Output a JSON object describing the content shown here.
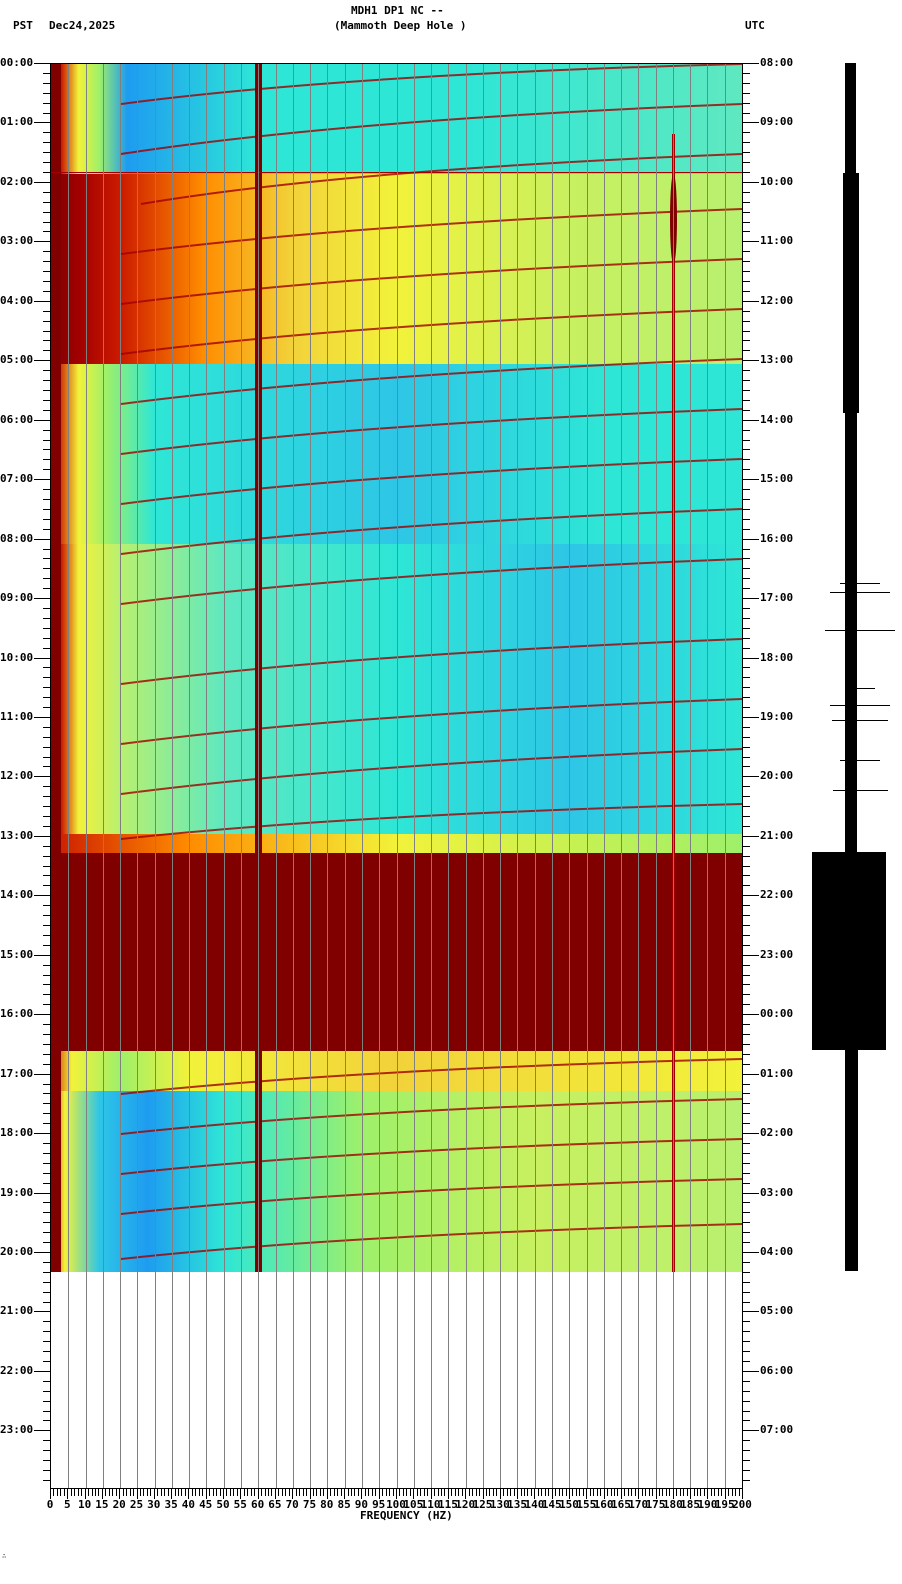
{
  "header": {
    "station": "MDH1 DP1 NC --",
    "location": "(Mammoth Deep Hole )",
    "left_tz": "PST",
    "date": "Dec24,2025",
    "right_tz": "UTC"
  },
  "colors": {
    "saturated": "#800000",
    "red": "#cc1a00",
    "orange": "#ff8c00",
    "yellow": "#f2f23a",
    "light_green": "#9ef06a",
    "cyan": "#2ee6d6",
    "blue": "#1e9cf0",
    "gridline": "#808080"
  },
  "footer": {
    "mark": "∴"
  },
  "chart_data": {
    "type": "heatmap",
    "title": "MDH1 DP1 NC -- (Mammoth Deep Hole )",
    "xlabel": "FREQUENCY (HZ)",
    "ylabel_left": "PST",
    "ylabel_right": "UTC",
    "date": "Dec24,2025",
    "xlim": [
      0,
      200
    ],
    "x_ticks": [
      "0",
      "5",
      "10",
      "15",
      "20",
      "25",
      "30",
      "35",
      "40",
      "45",
      "50",
      "55",
      "60",
      "65",
      "70",
      "75",
      "80",
      "85",
      "90",
      "95",
      "100",
      "105",
      "110",
      "115",
      "120",
      "125",
      "130",
      "135",
      "140",
      "145",
      "150",
      "155",
      "160",
      "165",
      "170",
      "175",
      "180",
      "185",
      "190",
      "195",
      "200"
    ],
    "y_ticks_left": [
      "00:00",
      "01:00",
      "02:00",
      "03:00",
      "04:00",
      "05:00",
      "06:00",
      "07:00",
      "08:00",
      "09:00",
      "10:00",
      "11:00",
      "12:00",
      "13:00",
      "14:00",
      "15:00",
      "16:00",
      "17:00",
      "18:00",
      "19:00",
      "20:00",
      "21:00",
      "22:00",
      "23:00"
    ],
    "y_ticks_right": [
      "08:00",
      "09:00",
      "10:00",
      "11:00",
      "12:00",
      "13:00",
      "14:00",
      "15:00",
      "16:00",
      "17:00",
      "18:00",
      "19:00",
      "20:00",
      "21:00",
      "22:00",
      "23:00",
      "00:00",
      "01:00",
      "02:00",
      "03:00",
      "04:00",
      "05:00",
      "06:00",
      "07:00"
    ],
    "data_end_pst": "20:20",
    "features": [
      {
        "type": "persistent_line",
        "freq_hz": 60,
        "label": "60 Hz power line, full duration"
      },
      {
        "type": "persistent_line",
        "freq_hz": 180,
        "from_pst": "01:10",
        "to_pst": "20:20",
        "note": "strongest 02:00-03:30"
      },
      {
        "type": "high_energy_low_freq",
        "freq_range_hz": [
          0,
          5
        ],
        "note": "persistent red below ~5 Hz"
      },
      {
        "type": "broadband_elevated",
        "from_pst": "01:55",
        "to_pst": "05:00",
        "freq_range_hz": [
          0,
          200
        ]
      },
      {
        "type": "saturated_band",
        "from_pst": "13:17",
        "to_pst": "16:37",
        "freq_range_hz": [
          0,
          200
        ]
      },
      {
        "type": "gliding_harmonics",
        "note": "rising diagonal tonal lines from ~20 Hz to 200 Hz throughout the record"
      }
    ],
    "colorscale": [
      "blue",
      "cyan",
      "light_green",
      "yellow",
      "orange",
      "red",
      "saturated"
    ],
    "waveform_panel": {
      "saturated_from_pst": "13:17",
      "saturated_to_pst": "16:37",
      "spikes_pst": [
        "09:40",
        "10:00",
        "10:40",
        "11:30",
        "11:50",
        "12:50",
        "12:55",
        "17:20"
      ]
    }
  }
}
